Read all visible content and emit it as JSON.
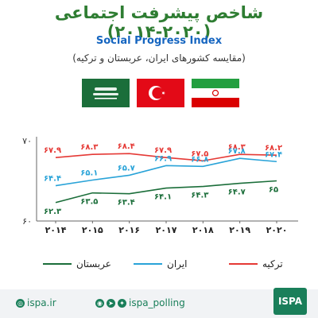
{
  "header": {
    "title": "شاخص پیشرفت اجتماعی (۲۰۲۰-۲۰۱۴)",
    "subtitle": "Social Progress Index",
    "subtitle2": "(مقایسه کشورهای ایران، عربستان و ترکیه)"
  },
  "flags": [
    "saudi-arabia-flag",
    "turkey-flag",
    "iran-flag"
  ],
  "chart_data": {
    "type": "line",
    "x": [
      "۲۰۱۴",
      "۲۰۱۵",
      "۲۰۱۶",
      "۲۰۱۷",
      "۲۰۱۸",
      "۲۰۱۹",
      "۲۰۲۰"
    ],
    "ylim": [
      60,
      70
    ],
    "yticks": [
      "۶۰",
      "۷۰"
    ],
    "title": "",
    "xlabel": "",
    "ylabel": "",
    "series": [
      {
        "name": "ترکیه",
        "color": "#e53935",
        "values": [
          67.9,
          68.3,
          68.4,
          67.9,
          67.5,
          68.3,
          68.2
        ],
        "labels": [
          "۶۷.۹",
          "۶۸.۳",
          "۶۸.۴",
          "۶۷.۹",
          "۶۷.۵",
          "۶۸.۳",
          "۶۸.۲"
        ]
      },
      {
        "name": "ایران",
        "color": "#29a3d8",
        "values": [
          64.4,
          65.1,
          65.7,
          66.9,
          66.8,
          67.8,
          67.4
        ],
        "labels": [
          "۶۴.۴",
          "۶۵.۱",
          "۶۵.۷",
          "۶۶.۹",
          "۶۶.۸",
          "۶۷.۸",
          "۶۷.۴"
        ]
      },
      {
        "name": "عربستان",
        "color": "#1b6e3a",
        "values": [
          62.3,
          63.5,
          63.4,
          64.1,
          64.3,
          64.7,
          65
        ],
        "labels": [
          "۶۲.۳",
          "۶۳.۵",
          "۶۳.۴",
          "۶۴.۱",
          "۶۴.۳",
          "۶۴.۷",
          "۶۵"
        ]
      }
    ]
  },
  "footer": {
    "url": "ispa.ir",
    "handle": "ispa_polling",
    "logo": "ISPA"
  }
}
